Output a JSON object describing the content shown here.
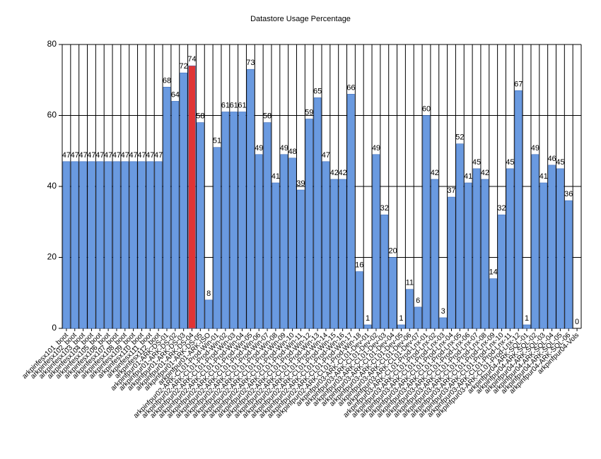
{
  "chart_data": {
    "type": "bar",
    "title": "Datastore Usage Percentage",
    "categories": [
      "arkpinfesx101_boot",
      "arkpinfesx102_boot",
      "arkpinfesx103_boot",
      "arkpinfesx104_boot",
      "arkpinfesx105_boot",
      "arkpinfesx106_boot",
      "arkpinfesx107_boot",
      "arkpinfesx108_boot",
      "arkpinfesx109_boot",
      "arkpinfesx110_boot",
      "arkpinfesx111_boot",
      "arkpinfesx112_boot",
      "arkpinfpur01-ARK-DS-01",
      "arkpinfpur01-ARK-DS-02",
      "arkpinfpur01-ARK-DS-03",
      "arkpinfpur01-ARK-DS-04",
      "arkpinfpur01-ARK-DS-05",
      "arkpinfpur01-ARK-ISO",
      "arkpinfpur02-ARK-CL01-Prod-Win-01",
      "arkpinfpur02-ARK-CL01-Prod-Win-02",
      "arkpinfpur02-ARK-CL01-Prod-Win-03",
      "arkpinfpur02-ARK-CL01-Prod-Win-04",
      "arkpinfpur02-ARK-CL01-Prod-Win-05",
      "arkpinfpur02-ARK-CL01-Prod-Win-06",
      "arkpinfpur02-ARK-CL01-Prod-Win-07",
      "arkpinfpur02-ARK-CL01-Prod-Win-08",
      "arkpinfpur02-ARK-CL01-Prod-Win-09",
      "arkpinfpur02-ARK-CL01-Prod-Win-10",
      "arkpinfpur02-ARK-CL01-Prod-Win-11",
      "arkpinfpur02-ARK-CL01-Prod-Win-12",
      "arkpinfpur02-ARK-CL01-Prod-Win-13",
      "arkpinfpur02-ARK-CL01-Prod-Win-14",
      "arkpinfpur02-ARK-CL01-Prod-Win-15",
      "arkpinfpur02-ARK-CL01-Prod-Win-16",
      "arkpinfpur02-ARK-CL01-Prod-Win-17",
      "arkpinfpur02-ARK-CL01-Prod-Win-18",
      "arkpinfpur03-ARK-CL01-Dev-01",
      "arkpinfpur03-ARK-CL01-Dev-02",
      "arkpinfpur03-ARK-CL01-Dev-03",
      "arkpinfpur03-ARK-CL01-Dev-04",
      "arkpinfpur03-ARK-CL01-Dev-05",
      "arkpinfpur03-ARK-CL01-Dev-06",
      "arkpinfpur03-ARK-CL01-Dev-07",
      "arkpinfpur03-ARK-CL01-Prod-Lnx-01",
      "arkpinfpur03-ARK-CL01-Prod-Lnx-02",
      "arkpinfpur03-ARK-CL01-Prod-Lnx-03",
      "arkpinfpur03-ARK-CL01-Prod-Lnx-04",
      "arkpinfpur03-ARK-CL01-Prod-Lnx-05",
      "arkpinfpur03-ARK-CL01-Prod-Lnx-06",
      "arkpinfpur03-ARK-CL01-Prod-Lnx-07",
      "arkpinfpur03-ARK-CL01-Prod-Lnx-08",
      "arkpinfpur03-ARK-CL01-Prod-Lnx-09",
      "arkpinfpur03-ARK-CL01-Prod-Lnx-10",
      "arkpinfpur03-ARK-CL01-Prod-Lnx-11",
      "arkpinfpur03-ARK-CL01-Prod-Lnx-12",
      "arkpinfpur04-ARK-SQL-01",
      "arkpinfpur04-ARK-SQL-02",
      "arkpinfpur04-ARK-SQL-03",
      "arkpinfpur04-ARK-SQL-04",
      "arkpinfpur04-ARK-SQL-05",
      "arkpinfpur04-ARK-SQL-06",
      "arkpinfpur04-Vols"
    ],
    "values": [
      47,
      47,
      47,
      47,
      47,
      47,
      47,
      47,
      47,
      47,
      47,
      47,
      68,
      64,
      72,
      74,
      58,
      8,
      51,
      61,
      61,
      61,
      73,
      49,
      58,
      41,
      49,
      48,
      39,
      59,
      65,
      47,
      42,
      42,
      66,
      16,
      1,
      49,
      32,
      20,
      1,
      11,
      6,
      60,
      42,
      3,
      37,
      52,
      41,
      45,
      42,
      14,
      32,
      45,
      67,
      1,
      49,
      41,
      46,
      45,
      36,
      0
    ],
    "colors": [
      "#6a9ae0",
      "#6a9ae0",
      "#6a9ae0",
      "#6a9ae0",
      "#6a9ae0",
      "#6a9ae0",
      "#6a9ae0",
      "#6a9ae0",
      "#6a9ae0",
      "#6a9ae0",
      "#6a9ae0",
      "#6a9ae0",
      "#6a9ae0",
      "#6a9ae0",
      "#6a9ae0",
      "#e03434",
      "#6a9ae0",
      "#6a9ae0",
      "#6a9ae0",
      "#6a9ae0",
      "#6a9ae0",
      "#6a9ae0",
      "#6a9ae0",
      "#6a9ae0",
      "#6a9ae0",
      "#6a9ae0",
      "#6a9ae0",
      "#6a9ae0",
      "#6a9ae0",
      "#6a9ae0",
      "#6a9ae0",
      "#6a9ae0",
      "#6a9ae0",
      "#6a9ae0",
      "#6a9ae0",
      "#6a9ae0",
      "#6a9ae0",
      "#6a9ae0",
      "#6a9ae0",
      "#6a9ae0",
      "#6a9ae0",
      "#6a9ae0",
      "#6a9ae0",
      "#6a9ae0",
      "#6a9ae0",
      "#6a9ae0",
      "#6a9ae0",
      "#6a9ae0",
      "#6a9ae0",
      "#6a9ae0",
      "#6a9ae0",
      "#6a9ae0",
      "#6a9ae0",
      "#6a9ae0",
      "#6a9ae0",
      "#6a9ae0",
      "#6a9ae0",
      "#6a9ae0",
      "#6a9ae0",
      "#6a9ae0",
      "#6a9ae0",
      "#6a9ae0"
    ],
    "ylim": [
      0,
      80
    ],
    "yticks": [
      0,
      20,
      40,
      60,
      80
    ],
    "grid": true
  }
}
